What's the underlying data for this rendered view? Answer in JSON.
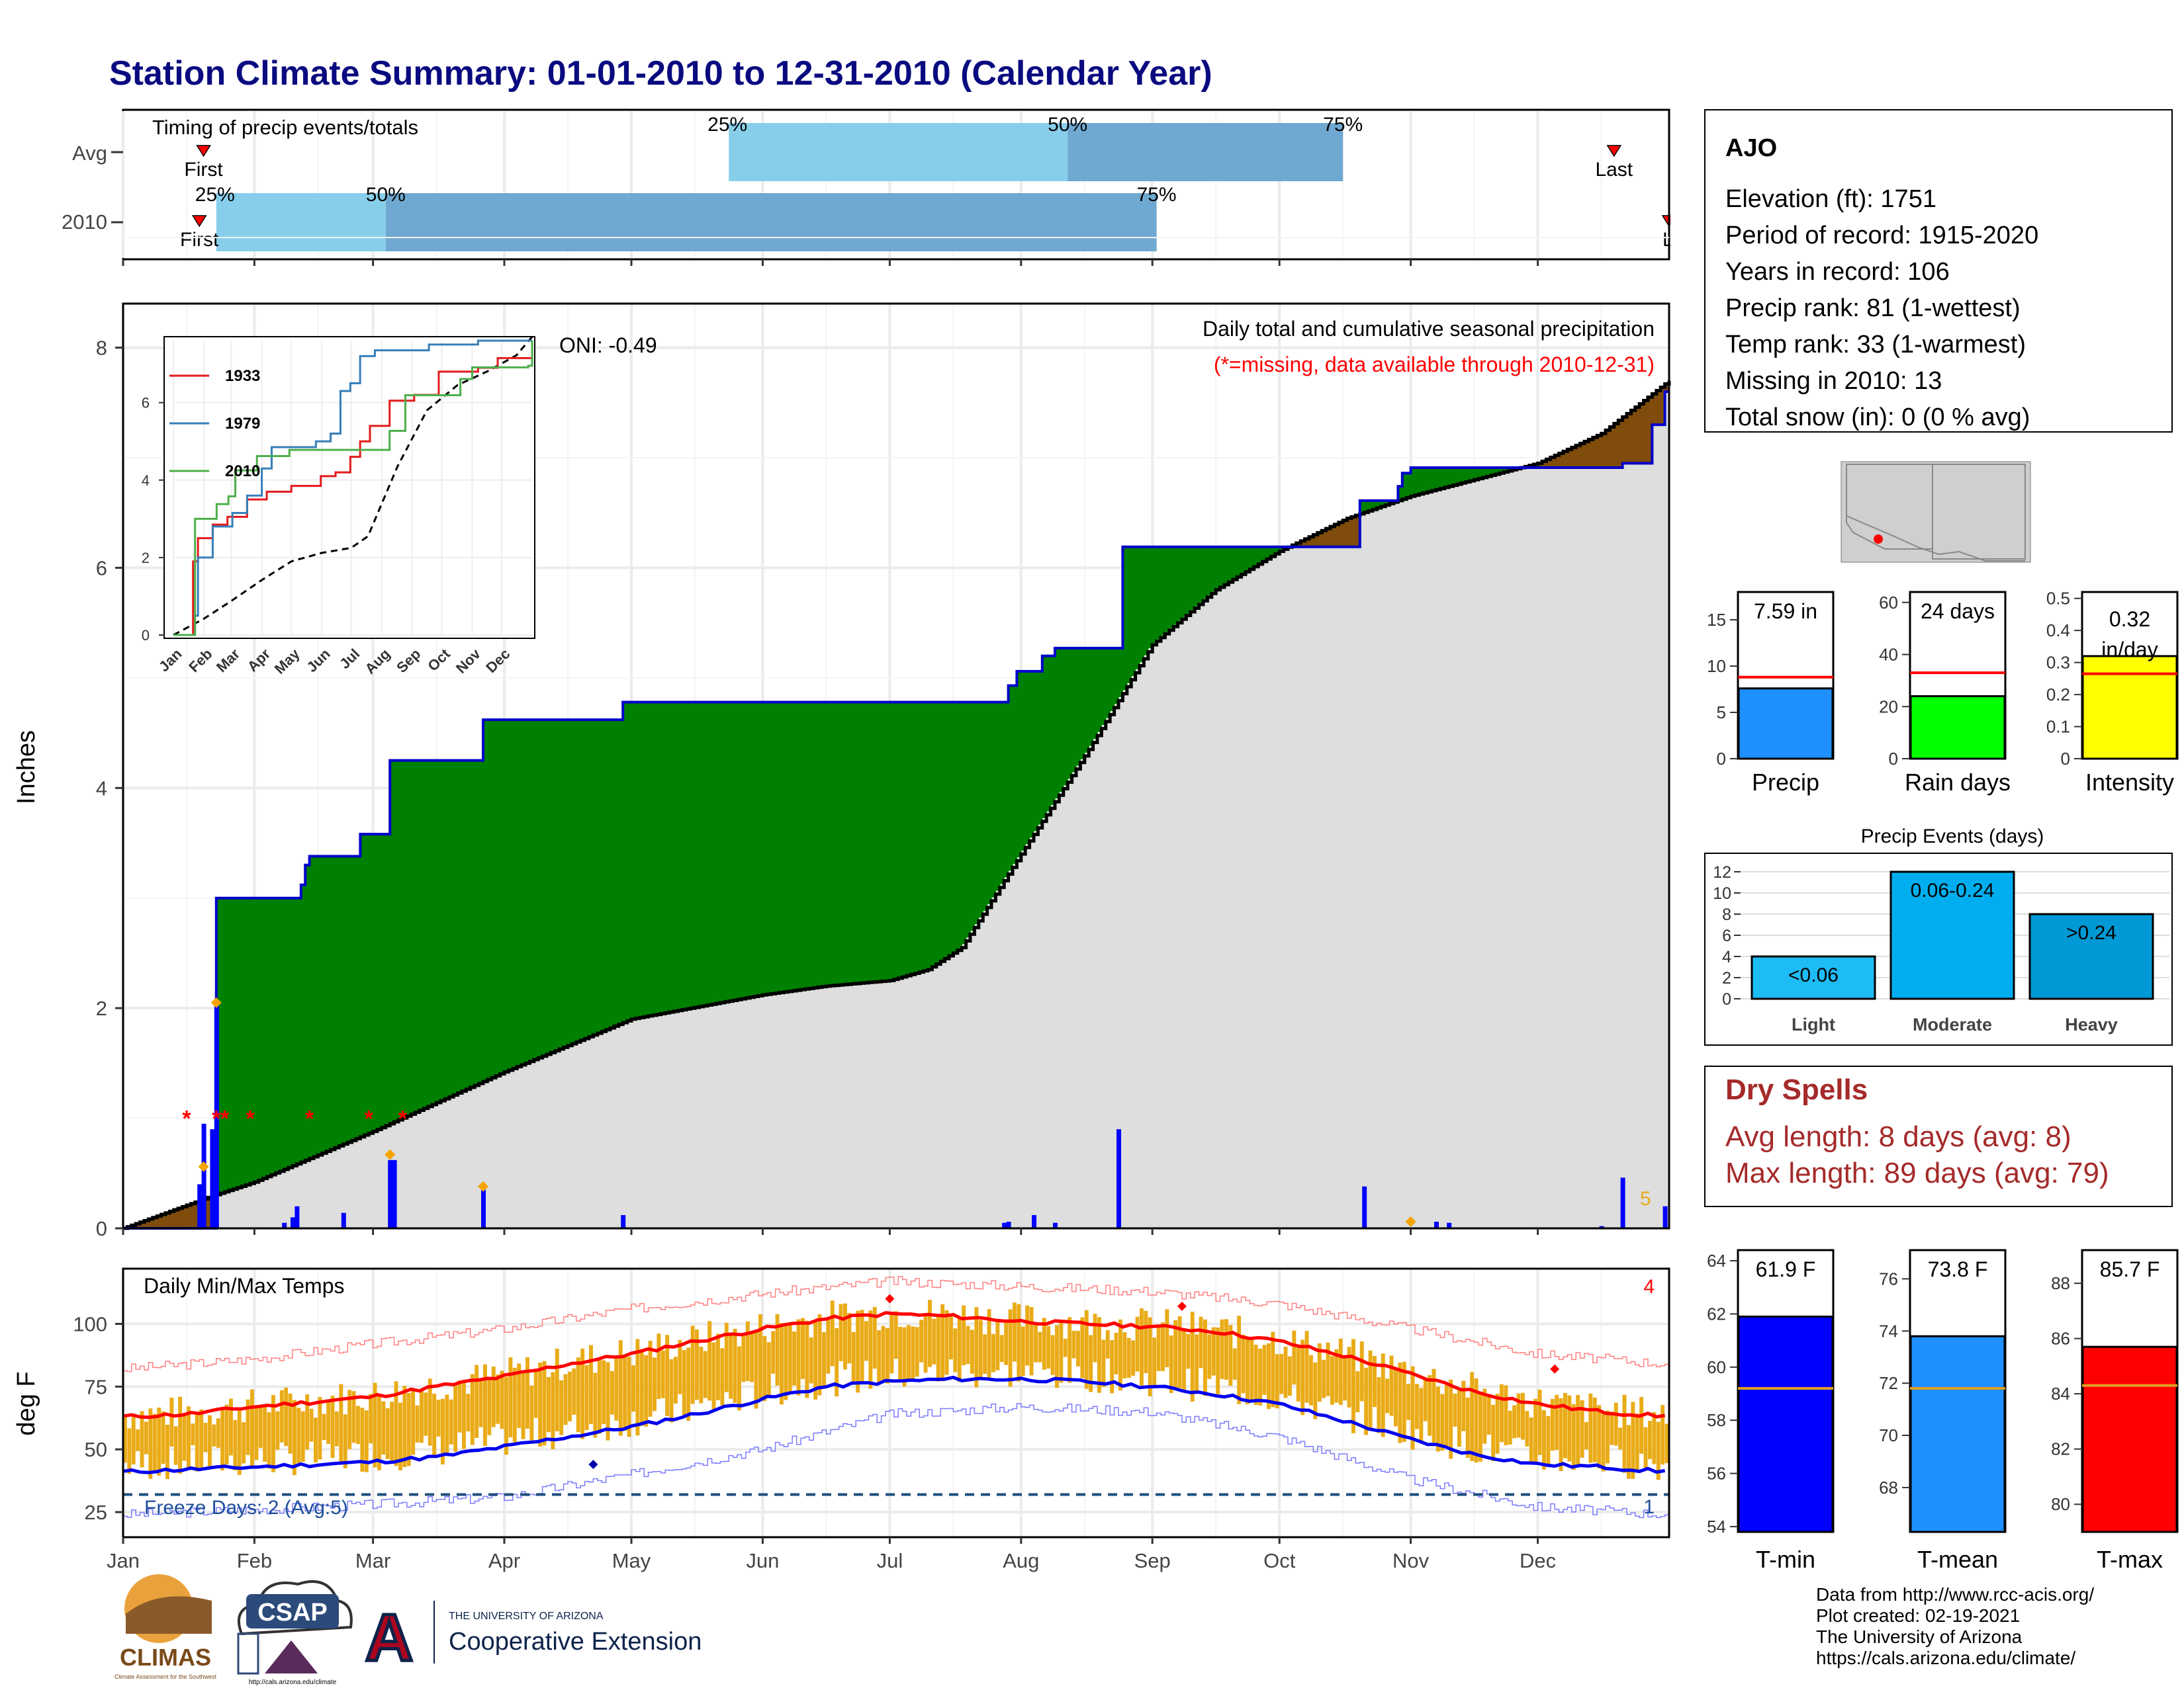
{
  "title": "Station Climate Summary: 01-01-2010 to 12-31-2010 (Calendar Year)",
  "colors": {
    "title": "#0a0a80",
    "green": "#008000",
    "brown": "#7f4c0b",
    "gray": "#dedede",
    "blue": "#0000ff",
    "red": "#ff0000",
    "orange": "#e9ab17",
    "drybrown": "#a52a2a",
    "light_blue": "#87ceeb",
    "mid_blue": "#6fa8d0"
  },
  "timing": {
    "title": "Timing of precip events/totals",
    "rows": [
      "Avg",
      "2010"
    ],
    "labels": {
      "q25": "25%",
      "q50": "50%",
      "q75": "75%",
      "first": "First",
      "last": "Last",
      "last_cut": "La"
    }
  },
  "months": [
    "Jan",
    "Feb",
    "Mar",
    "Apr",
    "May",
    "Jun",
    "Jul",
    "Aug",
    "Sep",
    "Oct",
    "Nov",
    "Dec"
  ],
  "chart_data": [
    {
      "type": "bar",
      "name": "timing",
      "rows": [
        "Avg",
        "2010"
      ],
      "avg": {
        "first_day": 19,
        "q25_day": 143,
        "q50_day": 223,
        "q75_day": 288,
        "last_day": 352
      },
      "y2010": {
        "first_day": 18,
        "q25_day": 22,
        "q50_day": 62,
        "q75_day": 244,
        "last_day": 365
      }
    },
    {
      "type": "area",
      "name": "precipitation",
      "title": "Daily total and cumulative seasonal precipitation",
      "note": "(*=missing, data available through 2010-12-31)",
      "oni": "ONI: -0.49",
      "ylabel": "Inches",
      "ylim": [
        0,
        8.4
      ],
      "yticks": [
        0,
        2,
        4,
        6,
        8
      ],
      "count_label": "5",
      "cumulative_2010": [
        [
          0,
          0
        ],
        [
          22,
          0
        ],
        [
          22,
          3.0
        ],
        [
          42,
          3.0
        ],
        [
          42,
          3.12
        ],
        [
          43,
          3.12
        ],
        [
          43,
          3.3
        ],
        [
          44,
          3.3
        ],
        [
          44,
          3.38
        ],
        [
          56,
          3.38
        ],
        [
          56,
          3.58
        ],
        [
          63,
          3.58
        ],
        [
          63,
          4.25
        ],
        [
          85,
          4.25
        ],
        [
          85,
          4.62
        ],
        [
          118,
          4.62
        ],
        [
          118,
          4.78
        ],
        [
          209,
          4.78
        ],
        [
          209,
          4.93
        ],
        [
          211,
          4.93
        ],
        [
          211,
          5.06
        ],
        [
          217,
          5.06
        ],
        [
          217,
          5.2
        ],
        [
          220,
          5.2
        ],
        [
          220,
          5.27
        ],
        [
          236,
          5.27
        ],
        [
          236,
          6.19
        ],
        [
          292,
          6.19
        ],
        [
          292,
          6.61
        ],
        [
          301,
          6.61
        ],
        [
          301,
          6.74
        ],
        [
          302,
          6.74
        ],
        [
          302,
          6.86
        ],
        [
          304,
          6.86
        ],
        [
          304,
          6.91
        ],
        [
          354,
          6.91
        ],
        [
          354,
          6.95
        ],
        [
          361,
          6.95
        ],
        [
          361,
          7.3
        ],
        [
          364,
          7.3
        ],
        [
          364,
          7.6
        ],
        [
          365,
          7.6
        ]
      ],
      "normal_cumulative": [
        [
          0,
          0
        ],
        [
          20,
          0.28
        ],
        [
          31,
          0.42
        ],
        [
          59,
          0.88
        ],
        [
          90,
          1.42
        ],
        [
          120,
          1.9
        ],
        [
          151,
          2.12
        ],
        [
          166,
          2.2
        ],
        [
          181,
          2.25
        ],
        [
          190,
          2.35
        ],
        [
          198,
          2.55
        ],
        [
          212,
          3.4
        ],
        [
          228,
          4.35
        ],
        [
          243,
          5.3
        ],
        [
          258,
          5.8
        ],
        [
          273,
          6.15
        ],
        [
          289,
          6.45
        ],
        [
          304,
          6.65
        ],
        [
          319,
          6.8
        ],
        [
          334,
          6.95
        ],
        [
          349,
          7.22
        ],
        [
          365,
          7.7
        ]
      ],
      "daily_precip": [
        [
          18,
          0.4
        ],
        [
          19,
          0.95
        ],
        [
          21,
          0.9
        ],
        [
          22,
          2.05
        ],
        [
          38,
          0.05
        ],
        [
          40,
          0.1
        ],
        [
          41,
          0.2
        ],
        [
          52,
          0.14
        ],
        [
          63,
          0.62
        ],
        [
          64,
          0.62
        ],
        [
          85,
          0.35
        ],
        [
          118,
          0.12
        ],
        [
          208,
          0.05
        ],
        [
          209,
          0.06
        ],
        [
          215,
          0.12
        ],
        [
          220,
          0.05
        ],
        [
          235,
          0.9
        ],
        [
          293,
          0.38
        ],
        [
          310,
          0.06
        ],
        [
          313,
          0.05
        ],
        [
          349,
          0.02
        ],
        [
          354,
          0.46
        ],
        [
          364,
          0.2
        ]
      ],
      "missing_days": [
        15,
        22,
        24,
        30,
        44,
        58,
        66
      ],
      "event_markers": [
        [
          19,
          0.56
        ],
        [
          22,
          2.05
        ],
        [
          63,
          0.67
        ],
        [
          85,
          0.38
        ],
        [
          304,
          0.06
        ]
      ]
    },
    {
      "type": "line",
      "name": "inset",
      "series": [
        {
          "name": "1933",
          "points": [
            [
              15,
              0
            ],
            [
              20,
              1.9
            ],
            [
              25,
              2.5
            ],
            [
              40,
              2.85
            ],
            [
              55,
              3.05
            ],
            [
              75,
              3.5
            ],
            [
              95,
              3.7
            ],
            [
              120,
              3.85
            ],
            [
              150,
              4.1
            ],
            [
              165,
              4.2
            ],
            [
              180,
              4.6
            ],
            [
              190,
              5.0
            ],
            [
              200,
              5.4
            ],
            [
              220,
              6.05
            ],
            [
              245,
              6.2
            ],
            [
              270,
              6.8
            ],
            [
              310,
              6.9
            ],
            [
              330,
              7.15
            ],
            [
              350,
              7.15
            ],
            [
              365,
              7.2
            ]
          ]
        },
        {
          "name": "1979",
          "points": [
            [
              15,
              0
            ],
            [
              22,
              0.5
            ],
            [
              25,
              2.0
            ],
            [
              40,
              2.8
            ],
            [
              60,
              3.15
            ],
            [
              75,
              3.6
            ],
            [
              90,
              4.3
            ],
            [
              100,
              4.85
            ],
            [
              145,
              5.0
            ],
            [
              160,
              5.2
            ],
            [
              170,
              6.3
            ],
            [
              180,
              6.5
            ],
            [
              190,
              7.2
            ],
            [
              205,
              7.35
            ],
            [
              260,
              7.5
            ],
            [
              310,
              7.6
            ],
            [
              365,
              7.6
            ]
          ]
        },
        {
          "name": "2010",
          "points": [
            [
              0,
              0
            ],
            [
              22,
              0
            ],
            [
              22,
              3.0
            ],
            [
              42,
              3.0
            ],
            [
              44,
              3.38
            ],
            [
              56,
              3.58
            ],
            [
              63,
              4.25
            ],
            [
              85,
              4.62
            ],
            [
              118,
              4.78
            ],
            [
              209,
              4.78
            ],
            [
              220,
              5.27
            ],
            [
              236,
              6.19
            ],
            [
              292,
              6.61
            ],
            [
              304,
              6.91
            ],
            [
              361,
              6.95
            ],
            [
              365,
              7.6
            ]
          ]
        }
      ],
      "normal": [
        [
          0,
          0
        ],
        [
          31,
          0.42
        ],
        [
          59,
          0.88
        ],
        [
          90,
          1.42
        ],
        [
          120,
          1.9
        ],
        [
          151,
          2.12
        ],
        [
          181,
          2.25
        ],
        [
          198,
          2.55
        ],
        [
          228,
          4.35
        ],
        [
          258,
          5.8
        ],
        [
          289,
          6.45
        ],
        [
          319,
          6.8
        ],
        [
          349,
          7.22
        ],
        [
          365,
          7.7
        ]
      ],
      "ylim": [
        0,
        7.6
      ],
      "yticks": [
        0,
        2,
        4,
        6
      ]
    },
    {
      "type": "bar",
      "name": "daily_temps",
      "title": "Daily Min/Max Temps",
      "ylabel": "deg F",
      "ylim": [
        15,
        122
      ],
      "yticks": [
        25,
        50,
        75,
        100
      ],
      "freeze_line": 32,
      "freeze_label": "Freeze Days: 2 (Avg:5)",
      "corner_red": "4",
      "corner_blue": "1",
      "normal_max": [
        [
          0,
          63
        ],
        [
          15,
          64
        ],
        [
          31,
          67
        ],
        [
          46,
          69
        ],
        [
          59,
          71
        ],
        [
          74,
          75
        ],
        [
          90,
          79
        ],
        [
          105,
          84
        ],
        [
          120,
          88
        ],
        [
          135,
          93
        ],
        [
          151,
          98
        ],
        [
          166,
          102
        ],
        [
          181,
          104
        ],
        [
          196,
          103
        ],
        [
          212,
          101
        ],
        [
          227,
          100
        ],
        [
          243,
          99
        ],
        [
          258,
          97
        ],
        [
          273,
          93
        ],
        [
          289,
          87
        ],
        [
          304,
          80
        ],
        [
          319,
          73
        ],
        [
          334,
          68
        ],
        [
          349,
          65
        ],
        [
          365,
          63
        ]
      ],
      "normal_min": [
        [
          0,
          41
        ],
        [
          15,
          42
        ],
        [
          31,
          43
        ],
        [
          46,
          44
        ],
        [
          59,
          45
        ],
        [
          74,
          47
        ],
        [
          90,
          51
        ],
        [
          105,
          55
        ],
        [
          120,
          59
        ],
        [
          135,
          64
        ],
        [
          151,
          70
        ],
        [
          166,
          75
        ],
        [
          181,
          77
        ],
        [
          196,
          78
        ],
        [
          212,
          78
        ],
        [
          227,
          77
        ],
        [
          243,
          75
        ],
        [
          258,
          72
        ],
        [
          273,
          68
        ],
        [
          289,
          61
        ],
        [
          304,
          54
        ],
        [
          319,
          48
        ],
        [
          334,
          44
        ],
        [
          349,
          43
        ],
        [
          365,
          41
        ]
      ],
      "record_max": [
        [
          0,
          82
        ],
        [
          31,
          86
        ],
        [
          59,
          92
        ],
        [
          90,
          98
        ],
        [
          120,
          106
        ],
        [
          151,
          112
        ],
        [
          181,
          117
        ],
        [
          212,
          115
        ],
        [
          243,
          113
        ],
        [
          273,
          108
        ],
        [
          304,
          98
        ],
        [
          334,
          88
        ],
        [
          365,
          84
        ]
      ],
      "record_min": [
        [
          0,
          24
        ],
        [
          31,
          26
        ],
        [
          59,
          28
        ],
        [
          90,
          31
        ],
        [
          120,
          40
        ],
        [
          151,
          50
        ],
        [
          181,
          64
        ],
        [
          212,
          67
        ],
        [
          243,
          65
        ],
        [
          273,
          55
        ],
        [
          304,
          38
        ],
        [
          334,
          27
        ],
        [
          365,
          24
        ]
      ]
    },
    {
      "type": "bar",
      "name": "summary_precip",
      "panels": [
        {
          "title": "Precip",
          "value": 7.59,
          "label": "7.59 in",
          "avg": 8.8,
          "ylim": [
            0,
            18
          ],
          "yticks": [
            0,
            5,
            10,
            15
          ],
          "color": "#1e90ff"
        },
        {
          "title": "Rain days",
          "value": 24,
          "label": "24 days",
          "avg": 33,
          "ylim": [
            0,
            64
          ],
          "yticks": [
            0,
            20,
            40,
            60
          ],
          "color": "#00ff00"
        },
        {
          "title": "Intensity",
          "value": 0.32,
          "label": "0.32 in/day",
          "avg": 0.265,
          "ylim": [
            0,
            0.52
          ],
          "yticks": [
            0.0,
            0.1,
            0.2,
            0.3,
            0.4,
            0.5
          ],
          "color": "#ffff00"
        }
      ]
    },
    {
      "type": "bar",
      "name": "precip_events",
      "title": "Precip Events (days)",
      "categories": [
        "Light",
        "Moderate",
        "Heavy"
      ],
      "values": [
        4,
        12,
        8
      ],
      "labels": [
        "<0.06",
        "0.06-0.24",
        ">0.24"
      ],
      "ylim": [
        0,
        12.5
      ],
      "yticks": [
        0,
        2,
        4,
        6,
        8,
        10,
        12
      ]
    },
    {
      "type": "bar",
      "name": "summary_temp",
      "panels": [
        {
          "title": "T-min",
          "value": 61.9,
          "label": "61.9 F",
          "avg": 59.2,
          "ylim": [
            53.8,
            64.4
          ],
          "yticks": [
            54,
            56,
            58,
            60,
            62,
            64
          ],
          "color": "#0000ff"
        },
        {
          "title": "T-mean",
          "value": 73.8,
          "label": "73.8 F",
          "avg": 71.8,
          "ylim": [
            66.3,
            77.1
          ],
          "yticks": [
            68,
            70,
            72,
            74,
            76
          ],
          "color": "#1e90ff"
        },
        {
          "title": "T-max",
          "value": 85.7,
          "label": "85.7 F",
          "avg": 84.3,
          "ylim": [
            79.0,
            89.2
          ],
          "yticks": [
            80,
            82,
            84,
            86,
            88
          ],
          "color": "#ff0000"
        }
      ]
    }
  ],
  "station": {
    "name": "AJO",
    "lines": [
      "Elevation (ft): 1751",
      "Period of record: 1915-2020",
      "Years in record: 106",
      "Precip rank: 81 (1-wettest)",
      "Temp rank: 33 (1-warmest)",
      "Missing in 2010: 13",
      "Total snow (in): 0 (0 % avg)"
    ]
  },
  "dry_spells": {
    "title": "Dry Spells",
    "avg": "Avg length: 8 days (avg: 8)",
    "max": "Max length: 89 days (avg: 79)"
  },
  "footer": {
    "lines": [
      "Data from http://www.rcc-acis.org/",
      "Plot created: 02-19-2021",
      "The University of Arizona",
      "https://cals.arizona.edu/climate/"
    ]
  },
  "logos": {
    "climas": "CLIMAS",
    "climas_sub": "Climate Assessment for the Southwest",
    "csap": "CSAP",
    "csap_url": "http://cals.arizona.edu/climate",
    "ua_letter": "A",
    "ua_small": "THE UNIVERSITY OF ARIZONA",
    "ua_big": "Cooperative Extension"
  }
}
